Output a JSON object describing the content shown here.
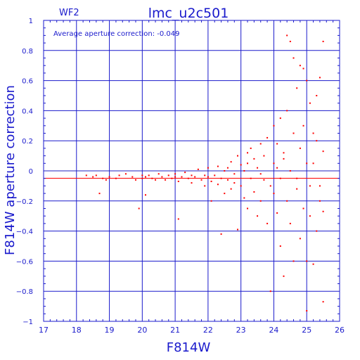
{
  "chart_data": {
    "type": "scatter",
    "panel_label": "WF2",
    "title": "lmc_u2c501",
    "annotation": "Average aperture correction: -0.049",
    "xlabel": "F814W",
    "ylabel": "F814W aperture correction",
    "xlim": [
      17,
      26
    ],
    "ylim": [
      -1,
      1
    ],
    "xticks": [
      17,
      18,
      19,
      20,
      21,
      22,
      23,
      24,
      25,
      26
    ],
    "yticks": [
      -1,
      -0.8,
      -0.6,
      -0.4,
      -0.2,
      0,
      0.2,
      0.4,
      0.6,
      0.8,
      1
    ],
    "ytick_labels": [
      "−1",
      "−0.8",
      "−0.6",
      "−0.4",
      "−0.2",
      "0",
      "0.2",
      "0.4",
      "0.6",
      "0.8",
      "1"
    ],
    "grid": true,
    "reference_lines": [
      {
        "y": 0,
        "color": "#2020c0"
      },
      {
        "y": -0.049,
        "color": "#ff0000"
      }
    ],
    "colors": {
      "frame": "#1a1acc",
      "points": "#ff0000",
      "background": "#ffffff"
    },
    "series": [
      {
        "points": [
          [
            18.3,
            -0.03
          ],
          [
            18.5,
            -0.04
          ],
          [
            18.6,
            -0.03
          ],
          [
            18.7,
            -0.15
          ],
          [
            18.8,
            -0.05
          ],
          [
            18.9,
            -0.06
          ],
          [
            19.0,
            -0.04
          ],
          [
            19.2,
            -0.05
          ],
          [
            19.3,
            -0.03
          ],
          [
            19.5,
            -0.02
          ],
          [
            19.7,
            -0.04
          ],
          [
            19.8,
            -0.06
          ],
          [
            19.9,
            -0.25
          ],
          [
            20.0,
            -0.05
          ],
          [
            20.0,
            -0.03
          ],
          [
            20.1,
            -0.04
          ],
          [
            20.1,
            -0.16
          ],
          [
            20.2,
            -0.03
          ],
          [
            20.3,
            -0.05
          ],
          [
            20.4,
            -0.06
          ],
          [
            20.5,
            -0.02
          ],
          [
            20.6,
            -0.04
          ],
          [
            20.7,
            -0.06
          ],
          [
            20.8,
            -0.03
          ],
          [
            20.9,
            -0.05
          ],
          [
            21.0,
            -0.04
          ],
          [
            21.0,
            -0.02
          ],
          [
            21.1,
            -0.07
          ],
          [
            21.1,
            -0.32
          ],
          [
            21.2,
            -0.04
          ],
          [
            21.3,
            -0.01
          ],
          [
            21.4,
            -0.05
          ],
          [
            21.5,
            -0.03
          ],
          [
            21.5,
            -0.08
          ],
          [
            21.6,
            -0.04
          ],
          [
            21.7,
            0.01
          ],
          [
            21.8,
            -0.06
          ],
          [
            21.9,
            -0.03
          ],
          [
            21.9,
            -0.1
          ],
          [
            22.0,
            -0.04
          ],
          [
            22.0,
            0.02
          ],
          [
            22.1,
            -0.07
          ],
          [
            22.1,
            -0.2
          ],
          [
            22.2,
            -0.03
          ],
          [
            22.3,
            0.03
          ],
          [
            22.3,
            -0.09
          ],
          [
            22.4,
            -0.05
          ],
          [
            22.4,
            -0.42
          ],
          [
            22.5,
            0.0
          ],
          [
            22.5,
            -0.15
          ],
          [
            22.6,
            -0.06
          ],
          [
            22.7,
            0.06
          ],
          [
            22.7,
            -0.12
          ],
          [
            22.8,
            -0.02
          ],
          [
            22.8,
            -0.08
          ],
          [
            22.9,
            0.1
          ],
          [
            22.9,
            -0.39
          ],
          [
            23.0,
            0.04
          ],
          [
            23.0,
            -0.1
          ],
          [
            23.1,
            -0.18
          ],
          [
            23.1,
            0.0
          ],
          [
            23.2,
            0.12
          ],
          [
            23.2,
            -0.25
          ],
          [
            23.3,
            -0.05
          ],
          [
            23.3,
            0.15
          ],
          [
            23.4,
            -0.14
          ],
          [
            23.4,
            0.08
          ],
          [
            23.5,
            -0.3
          ],
          [
            23.5,
            0.02
          ],
          [
            23.6,
            0.18
          ],
          [
            23.6,
            -0.2
          ],
          [
            23.7,
            -0.06
          ],
          [
            23.7,
            0.1
          ],
          [
            23.8,
            -0.35
          ],
          [
            23.8,
            0.22
          ],
          [
            23.9,
            -0.1
          ],
          [
            23.9,
            -0.8
          ],
          [
            24.0,
            0.3
          ],
          [
            24.0,
            -0.15
          ],
          [
            24.0,
            0.05
          ],
          [
            24.1,
            -0.28
          ],
          [
            24.1,
            0.18
          ],
          [
            24.2,
            -0.5
          ],
          [
            24.2,
            0.35
          ],
          [
            24.2,
            -0.05
          ],
          [
            24.3,
            0.12
          ],
          [
            24.3,
            -0.7
          ],
          [
            24.4,
            0.9
          ],
          [
            24.4,
            -0.2
          ],
          [
            24.4,
            0.4
          ],
          [
            24.5,
            -0.35
          ],
          [
            24.5,
            0.86
          ],
          [
            24.5,
            0.0
          ],
          [
            24.6,
            -0.6
          ],
          [
            24.6,
            0.25
          ],
          [
            24.6,
            0.75
          ],
          [
            24.7,
            -0.12
          ],
          [
            24.7,
            0.55
          ],
          [
            24.8,
            -0.45
          ],
          [
            24.8,
            0.15
          ],
          [
            24.8,
            0.7
          ],
          [
            24.9,
            -0.25
          ],
          [
            24.9,
            0.3
          ],
          [
            24.9,
            0.68
          ],
          [
            25.0,
            -0.6
          ],
          [
            25.0,
            0.6
          ],
          [
            25.0,
            -0.93
          ],
          [
            25.0,
            0.05
          ],
          [
            25.1,
            -0.3
          ],
          [
            25.1,
            0.45
          ],
          [
            25.1,
            -0.1
          ],
          [
            25.2,
            0.25
          ],
          [
            25.2,
            -0.62
          ],
          [
            25.2,
            0.05
          ],
          [
            25.3,
            0.5
          ],
          [
            25.3,
            -0.4
          ],
          [
            25.3,
            0.2
          ],
          [
            25.4,
            -0.2
          ],
          [
            25.4,
            0.62
          ],
          [
            25.4,
            -0.1
          ],
          [
            25.5,
            0.86
          ],
          [
            25.5,
            -0.27
          ],
          [
            25.5,
            -0.87
          ],
          [
            25.5,
            0.13
          ],
          [
            23.2,
            0.05
          ],
          [
            23.6,
            -0.02
          ],
          [
            24.1,
            0.02
          ],
          [
            24.3,
            0.08
          ],
          [
            24.7,
            -0.05
          ],
          [
            22.6,
            0.02
          ]
        ]
      }
    ]
  }
}
